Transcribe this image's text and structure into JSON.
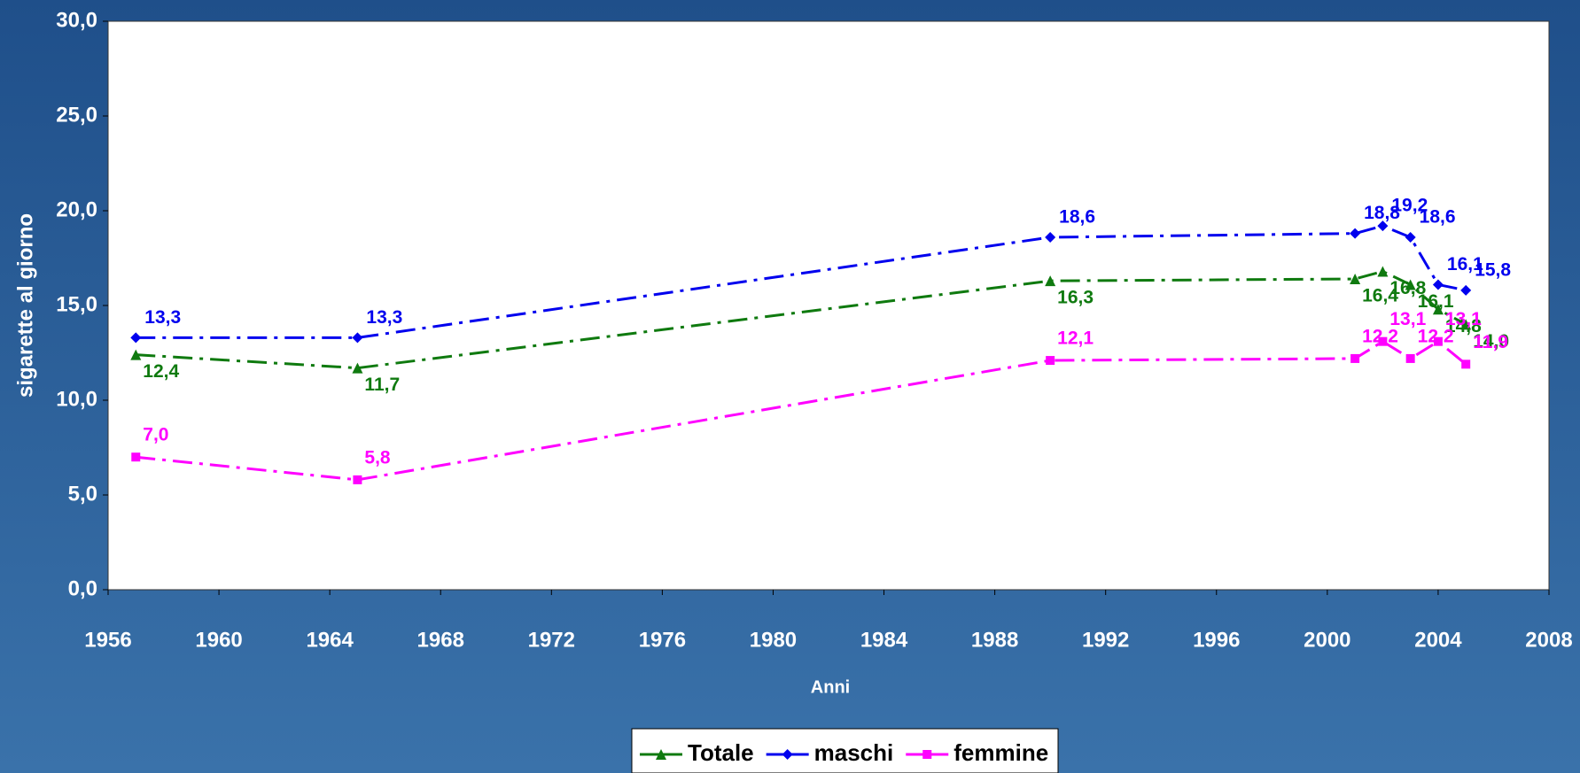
{
  "chart_data": {
    "type": "line",
    "x_label": "Anni",
    "y_label": "sigarette al giorno",
    "x": [
      1957,
      1965,
      1990,
      2001,
      2002,
      2003,
      2004,
      2005
    ],
    "series": [
      {
        "name": "Totale",
        "color": "#0f7a0f",
        "marker": "triangle",
        "values": [
          12.4,
          11.7,
          16.3,
          16.4,
          16.8,
          16.1,
          14.8,
          14.0
        ],
        "value_labels": [
          "12,4",
          "11,7",
          "16,3",
          "16,4",
          "16,8",
          "16,1",
          "14,8",
          "14,0"
        ]
      },
      {
        "name": "maschi",
        "color": "#0000ee",
        "marker": "diamond",
        "values": [
          13.3,
          13.3,
          18.6,
          18.8,
          19.2,
          18.6,
          16.1,
          15.8
        ],
        "value_labels": [
          "13,3",
          "13,3",
          "18,6",
          "18,8",
          "19,2",
          "18,6",
          "16,1",
          "15,8"
        ]
      },
      {
        "name": "femmine",
        "color": "#ff00ff",
        "marker": "square",
        "values": [
          7.0,
          5.8,
          12.1,
          12.2,
          13.1,
          12.2,
          13.1,
          11.9
        ],
        "value_labels": [
          "7,0",
          "5,8",
          "12,1",
          "12,2",
          "13,1",
          "12,2",
          "13,1",
          "11,9"
        ]
      }
    ],
    "xlim": [
      1956,
      2008
    ],
    "xticks": [
      1956,
      1960,
      1964,
      1968,
      1972,
      1976,
      1980,
      1984,
      1988,
      1992,
      1996,
      2000,
      2004,
      2008
    ],
    "ylim": [
      0,
      30
    ],
    "yticks": [
      {
        "value": 0,
        "label": "0,0"
      },
      {
        "value": 5,
        "label": "5,0"
      },
      {
        "value": 10,
        "label": "10,0"
      },
      {
        "value": 15,
        "label": "15,0"
      },
      {
        "value": 20,
        "label": "20,0"
      },
      {
        "value": 25,
        "label": "25,0"
      },
      {
        "value": 30,
        "label": "30,0"
      }
    ],
    "grid": false,
    "legend": "bottom"
  }
}
